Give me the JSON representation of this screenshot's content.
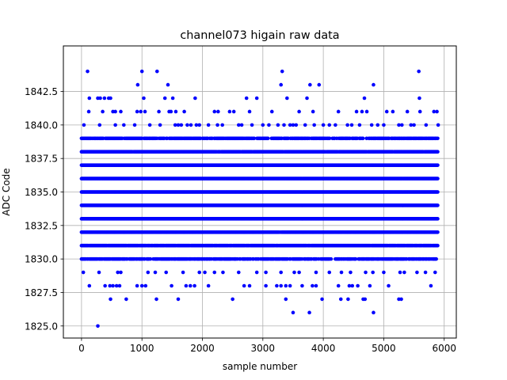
{
  "chart_data": {
    "type": "scatter",
    "title": "channel073 higain raw data",
    "xlabel": "sample number",
    "ylabel": "ADC Code",
    "xlim": [
      -300,
      6200
    ],
    "ylim": [
      1824.1,
      1845.9
    ],
    "x_ticks": [
      0,
      1000,
      2000,
      3000,
      4000,
      5000,
      6000
    ],
    "x_tick_labels": [
      "0",
      "1000",
      "2000",
      "3000",
      "4000",
      "5000",
      "6000"
    ],
    "y_ticks": [
      1825.0,
      1827.5,
      1830.0,
      1832.5,
      1835.0,
      1837.5,
      1840.0,
      1842.5
    ],
    "y_tick_labels": [
      "1825.0",
      "1827.5",
      "1830.0",
      "1832.5",
      "1835.0",
      "1837.5",
      "1840.0",
      "1842.5"
    ],
    "grid": true,
    "marker_color": "#0000ff",
    "sample_range": [
      0,
      5900
    ],
    "dense_levels": [
      1830,
      1831,
      1832,
      1833,
      1834,
      1835,
      1836,
      1837,
      1838,
      1839
    ],
    "level_fill": {
      "1830": 0.75,
      "1831": 0.93,
      "1832": 0.995,
      "1833": 1.0,
      "1834": 1.0,
      "1835": 1.0,
      "1836": 1.0,
      "1837": 1.0,
      "1838": 0.98,
      "1839": 0.8
    },
    "sparse_points": [
      {
        "x": 100,
        "y": 1844
      },
      {
        "x": 1000,
        "y": 1844
      },
      {
        "x": 1250,
        "y": 1844
      },
      {
        "x": 3320,
        "y": 1844
      },
      {
        "x": 5580,
        "y": 1844
      },
      {
        "x": 930,
        "y": 1843
      },
      {
        "x": 1430,
        "y": 1843
      },
      {
        "x": 3300,
        "y": 1843
      },
      {
        "x": 3780,
        "y": 1843
      },
      {
        "x": 3930,
        "y": 1843
      },
      {
        "x": 4830,
        "y": 1843
      },
      {
        "x": 130,
        "y": 1842
      },
      {
        "x": 270,
        "y": 1842
      },
      {
        "x": 310,
        "y": 1842
      },
      {
        "x": 380,
        "y": 1842
      },
      {
        "x": 450,
        "y": 1842
      },
      {
        "x": 480,
        "y": 1842
      },
      {
        "x": 1030,
        "y": 1842
      },
      {
        "x": 1380,
        "y": 1842
      },
      {
        "x": 1510,
        "y": 1842
      },
      {
        "x": 1880,
        "y": 1842
      },
      {
        "x": 2730,
        "y": 1842
      },
      {
        "x": 2900,
        "y": 1842
      },
      {
        "x": 3400,
        "y": 1842
      },
      {
        "x": 3730,
        "y": 1842
      },
      {
        "x": 4680,
        "y": 1842
      },
      {
        "x": 5590,
        "y": 1842
      },
      {
        "x": 120,
        "y": 1841
      },
      {
        "x": 350,
        "y": 1841
      },
      {
        "x": 520,
        "y": 1841
      },
      {
        "x": 560,
        "y": 1841
      },
      {
        "x": 650,
        "y": 1841
      },
      {
        "x": 920,
        "y": 1841
      },
      {
        "x": 980,
        "y": 1841
      },
      {
        "x": 1050,
        "y": 1841
      },
      {
        "x": 1280,
        "y": 1841
      },
      {
        "x": 1450,
        "y": 1841
      },
      {
        "x": 1480,
        "y": 1841
      },
      {
        "x": 1560,
        "y": 1841
      },
      {
        "x": 1700,
        "y": 1841
      },
      {
        "x": 2200,
        "y": 1841
      },
      {
        "x": 2260,
        "y": 1841
      },
      {
        "x": 2450,
        "y": 1841
      },
      {
        "x": 2520,
        "y": 1841
      },
      {
        "x": 2780,
        "y": 1841
      },
      {
        "x": 3150,
        "y": 1841
      },
      {
        "x": 3600,
        "y": 1841
      },
      {
        "x": 3830,
        "y": 1841
      },
      {
        "x": 4250,
        "y": 1841
      },
      {
        "x": 4550,
        "y": 1841
      },
      {
        "x": 4640,
        "y": 1841
      },
      {
        "x": 4720,
        "y": 1841
      },
      {
        "x": 5050,
        "y": 1841
      },
      {
        "x": 5150,
        "y": 1841
      },
      {
        "x": 5390,
        "y": 1841
      },
      {
        "x": 5600,
        "y": 1841
      },
      {
        "x": 5830,
        "y": 1841
      },
      {
        "x": 5880,
        "y": 1841
      },
      {
        "x": 40,
        "y": 1840
      },
      {
        "x": 300,
        "y": 1840
      },
      {
        "x": 560,
        "y": 1840
      },
      {
        "x": 700,
        "y": 1840
      },
      {
        "x": 880,
        "y": 1840
      },
      {
        "x": 1130,
        "y": 1840
      },
      {
        "x": 1300,
        "y": 1840
      },
      {
        "x": 1550,
        "y": 1840
      },
      {
        "x": 1600,
        "y": 1840
      },
      {
        "x": 1650,
        "y": 1840
      },
      {
        "x": 1750,
        "y": 1840
      },
      {
        "x": 1810,
        "y": 1840
      },
      {
        "x": 1900,
        "y": 1840
      },
      {
        "x": 1950,
        "y": 1840
      },
      {
        "x": 2100,
        "y": 1840
      },
      {
        "x": 2250,
        "y": 1840
      },
      {
        "x": 2330,
        "y": 1840
      },
      {
        "x": 2600,
        "y": 1840
      },
      {
        "x": 2650,
        "y": 1840
      },
      {
        "x": 2820,
        "y": 1840
      },
      {
        "x": 3000,
        "y": 1840
      },
      {
        "x": 3100,
        "y": 1840
      },
      {
        "x": 3250,
        "y": 1840
      },
      {
        "x": 3350,
        "y": 1840
      },
      {
        "x": 3450,
        "y": 1840
      },
      {
        "x": 3500,
        "y": 1840
      },
      {
        "x": 3550,
        "y": 1840
      },
      {
        "x": 3700,
        "y": 1840
      },
      {
        "x": 3850,
        "y": 1840
      },
      {
        "x": 4000,
        "y": 1840
      },
      {
        "x": 4100,
        "y": 1840
      },
      {
        "x": 4200,
        "y": 1840
      },
      {
        "x": 4400,
        "y": 1840
      },
      {
        "x": 4470,
        "y": 1840
      },
      {
        "x": 4600,
        "y": 1840
      },
      {
        "x": 4800,
        "y": 1840
      },
      {
        "x": 4900,
        "y": 1840
      },
      {
        "x": 5000,
        "y": 1840
      },
      {
        "x": 5250,
        "y": 1840
      },
      {
        "x": 5300,
        "y": 1840
      },
      {
        "x": 5450,
        "y": 1840
      },
      {
        "x": 5500,
        "y": 1840
      },
      {
        "x": 5700,
        "y": 1840
      },
      {
        "x": 5900,
        "y": 1840
      },
      {
        "x": 30,
        "y": 1829
      },
      {
        "x": 290,
        "y": 1829
      },
      {
        "x": 600,
        "y": 1829
      },
      {
        "x": 650,
        "y": 1829
      },
      {
        "x": 1100,
        "y": 1829
      },
      {
        "x": 1220,
        "y": 1829
      },
      {
        "x": 1400,
        "y": 1829
      },
      {
        "x": 1680,
        "y": 1829
      },
      {
        "x": 1950,
        "y": 1829
      },
      {
        "x": 2040,
        "y": 1829
      },
      {
        "x": 2200,
        "y": 1829
      },
      {
        "x": 2340,
        "y": 1829
      },
      {
        "x": 2600,
        "y": 1829
      },
      {
        "x": 2900,
        "y": 1829
      },
      {
        "x": 3050,
        "y": 1829
      },
      {
        "x": 3300,
        "y": 1829
      },
      {
        "x": 3520,
        "y": 1829
      },
      {
        "x": 3600,
        "y": 1829
      },
      {
        "x": 3880,
        "y": 1829
      },
      {
        "x": 4100,
        "y": 1829
      },
      {
        "x": 4300,
        "y": 1829
      },
      {
        "x": 4450,
        "y": 1829
      },
      {
        "x": 4700,
        "y": 1829
      },
      {
        "x": 4820,
        "y": 1829
      },
      {
        "x": 5000,
        "y": 1829
      },
      {
        "x": 5270,
        "y": 1829
      },
      {
        "x": 5340,
        "y": 1829
      },
      {
        "x": 5550,
        "y": 1829
      },
      {
        "x": 5690,
        "y": 1829
      },
      {
        "x": 5850,
        "y": 1829
      },
      {
        "x": 130,
        "y": 1828
      },
      {
        "x": 390,
        "y": 1828
      },
      {
        "x": 470,
        "y": 1828
      },
      {
        "x": 520,
        "y": 1828
      },
      {
        "x": 580,
        "y": 1828
      },
      {
        "x": 630,
        "y": 1828
      },
      {
        "x": 920,
        "y": 1828
      },
      {
        "x": 1000,
        "y": 1828
      },
      {
        "x": 1060,
        "y": 1828
      },
      {
        "x": 1490,
        "y": 1828
      },
      {
        "x": 1730,
        "y": 1828
      },
      {
        "x": 1800,
        "y": 1828
      },
      {
        "x": 1870,
        "y": 1828
      },
      {
        "x": 2100,
        "y": 1828
      },
      {
        "x": 2690,
        "y": 1828
      },
      {
        "x": 2780,
        "y": 1828
      },
      {
        "x": 3050,
        "y": 1828
      },
      {
        "x": 3230,
        "y": 1828
      },
      {
        "x": 3300,
        "y": 1828
      },
      {
        "x": 3380,
        "y": 1828
      },
      {
        "x": 3450,
        "y": 1828
      },
      {
        "x": 3650,
        "y": 1828
      },
      {
        "x": 3820,
        "y": 1828
      },
      {
        "x": 3880,
        "y": 1828
      },
      {
        "x": 4250,
        "y": 1828
      },
      {
        "x": 4430,
        "y": 1828
      },
      {
        "x": 4480,
        "y": 1828
      },
      {
        "x": 4570,
        "y": 1828
      },
      {
        "x": 4770,
        "y": 1828
      },
      {
        "x": 5080,
        "y": 1828
      },
      {
        "x": 5780,
        "y": 1828
      },
      {
        "x": 480,
        "y": 1827
      },
      {
        "x": 740,
        "y": 1827
      },
      {
        "x": 1240,
        "y": 1827
      },
      {
        "x": 1600,
        "y": 1827
      },
      {
        "x": 2500,
        "y": 1827
      },
      {
        "x": 3380,
        "y": 1827
      },
      {
        "x": 3980,
        "y": 1827
      },
      {
        "x": 4290,
        "y": 1827
      },
      {
        "x": 4410,
        "y": 1827
      },
      {
        "x": 4660,
        "y": 1827
      },
      {
        "x": 4690,
        "y": 1827
      },
      {
        "x": 5250,
        "y": 1827
      },
      {
        "x": 5290,
        "y": 1827
      },
      {
        "x": 3500,
        "y": 1826
      },
      {
        "x": 3770,
        "y": 1826
      },
      {
        "x": 4830,
        "y": 1826
      },
      {
        "x": 270,
        "y": 1825
      }
    ]
  }
}
